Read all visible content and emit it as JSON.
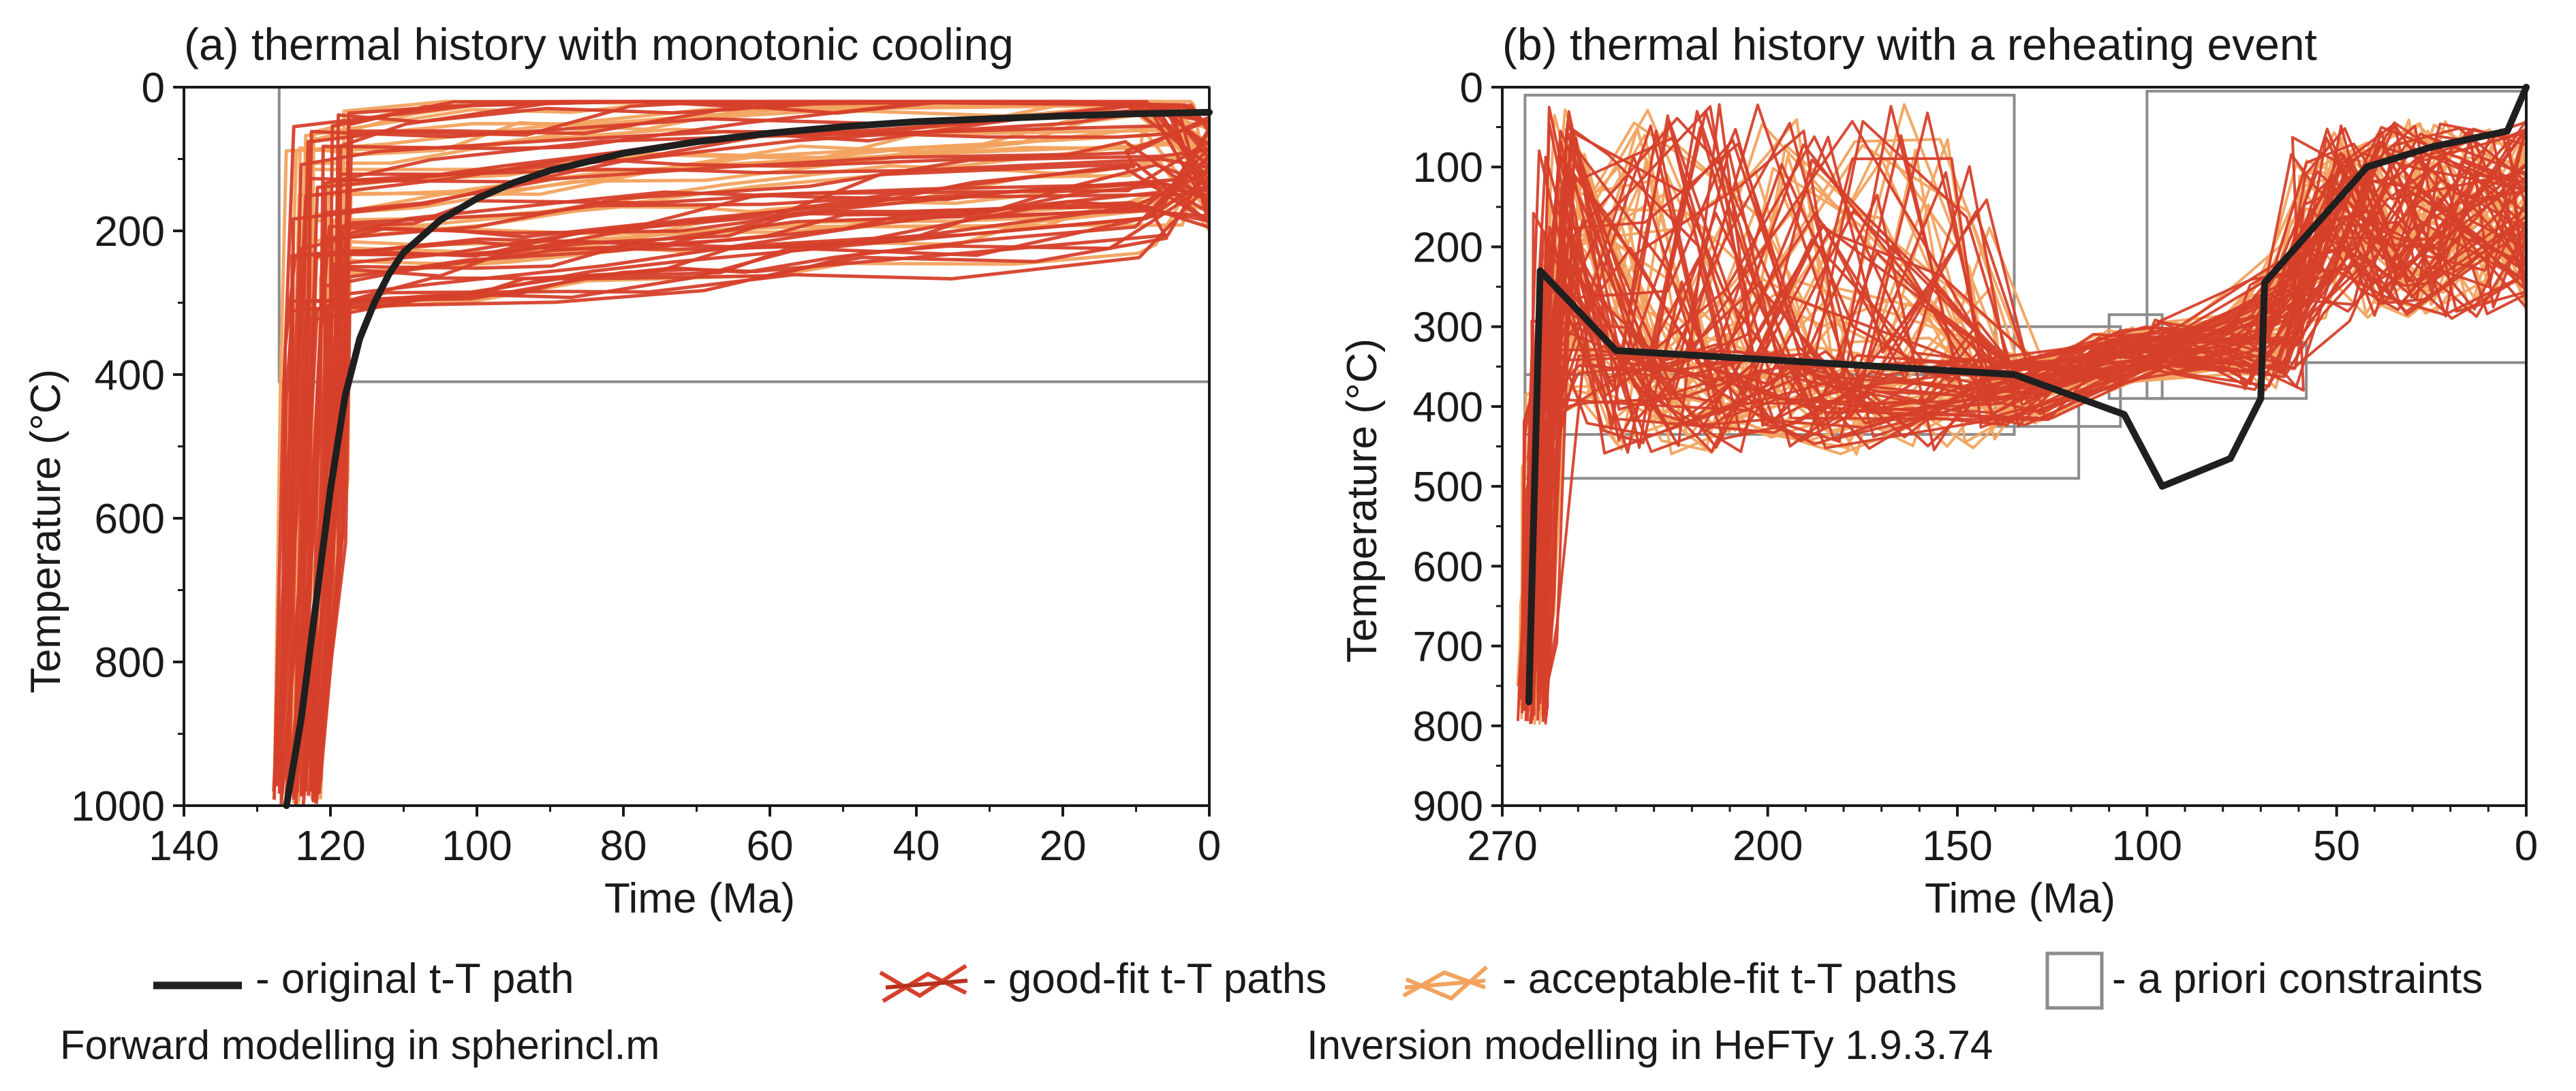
{
  "colors": {
    "original": "#1f1f1f",
    "good_fit": "#d6402b",
    "good_fit_dark": "#b8321f",
    "acceptable_fit": "#f2a35f",
    "constraint": "#8c8c8c",
    "axis": "#1a1a1a"
  },
  "chart_data": [
    {
      "panel": "a",
      "type": "line",
      "title": "(a) thermal history with monotonic cooling",
      "xlabel": "Time (Ma)",
      "ylabel": "Temperature (°C)",
      "xlim": [
        140,
        0
      ],
      "ylim": [
        0,
        1000
      ],
      "x_reversed": true,
      "y_inverted": true,
      "xticks": [
        140,
        120,
        100,
        80,
        60,
        40,
        20,
        0
      ],
      "xtick_labels": [
        "140",
        "120",
        "100",
        "80",
        "60",
        "40",
        "20",
        "0"
      ],
      "yticks": [
        0,
        200,
        400,
        600,
        800,
        1000
      ],
      "ytick_labels": [
        "0",
        "200",
        "400",
        "600",
        "800",
        "1000"
      ],
      "constraints": [
        {
          "t_old": 127,
          "t_young": 0,
          "T_min": 0,
          "T_max": 410
        }
      ],
      "series": [
        {
          "name": "original t-T path",
          "x": [
            126,
            124,
            122,
            120,
            118,
            116,
            114,
            112,
            110,
            105,
            100,
            95,
            90,
            80,
            70,
            60,
            50,
            40,
            30,
            20,
            10,
            0
          ],
          "y": [
            1000,
            880,
            720,
            560,
            430,
            350,
            300,
            260,
            230,
            185,
            155,
            133,
            116,
            92,
            76,
            64,
            55,
            48,
            44,
            40,
            37,
            35
          ]
        }
      ],
      "path_sets": [
        {
          "name": "acceptable-fit t-T paths",
          "count": 26
        },
        {
          "name": "good-fit t-T paths",
          "count": 45
        }
      ]
    },
    {
      "panel": "b",
      "type": "line",
      "title": "(b) thermal history with a reheating event",
      "xlabel": "Time (Ma)",
      "ylabel": "Temperature (°C)",
      "xlim": [
        270,
        0
      ],
      "ylim": [
        0,
        900
      ],
      "x_reversed": true,
      "y_inverted": true,
      "xticks": [
        270,
        200,
        150,
        100,
        50,
        0
      ],
      "xtick_labels": [
        "270",
        "200",
        "150",
        "100",
        "50",
        "0"
      ],
      "yticks": [
        0,
        100,
        200,
        300,
        400,
        500,
        600,
        700,
        800,
        900
      ],
      "ytick_labels": [
        "0",
        "100",
        "200",
        "300",
        "400",
        "500",
        "600",
        "700",
        "800",
        "900"
      ],
      "constraints": [
        {
          "t_old": 264,
          "t_young": 135,
          "T_min": 10,
          "T_max": 435
        },
        {
          "t_old": 264,
          "t_young": 118,
          "T_min": 360,
          "T_max": 490
        },
        {
          "t_old": 140,
          "t_young": 107,
          "T_min": 300,
          "T_max": 425
        },
        {
          "t_old": 110,
          "t_young": 96,
          "T_min": 285,
          "T_max": 390
        },
        {
          "t_old": 100,
          "t_young": 58,
          "T_min": 320,
          "T_max": 390
        },
        {
          "t_old": 100,
          "t_young": 0,
          "T_min": 5,
          "T_max": 345
        }
      ],
      "series": [
        {
          "name": "original t-T path",
          "x": [
            263,
            260,
            240,
            135,
            106,
            96,
            78,
            70,
            69,
            42,
            25,
            5,
            0
          ],
          "y": [
            770,
            230,
            330,
            360,
            410,
            500,
            465,
            390,
            245,
            100,
            75,
            55,
            0
          ]
        }
      ],
      "path_sets": [
        {
          "name": "acceptable-fit t-T paths",
          "count": 40
        },
        {
          "name": "good-fit t-T paths",
          "count": 55
        }
      ]
    }
  ],
  "legend": {
    "original": "- original t-T path",
    "good_fit": "- good-fit t-T paths",
    "acceptable_fit": "- acceptable-fit t-T paths",
    "constraints": "- a priori constraints"
  },
  "captions": {
    "left": "Forward modelling in spherincl.m",
    "right": "Inversion modelling in HeFTy 1.9.3.74"
  }
}
